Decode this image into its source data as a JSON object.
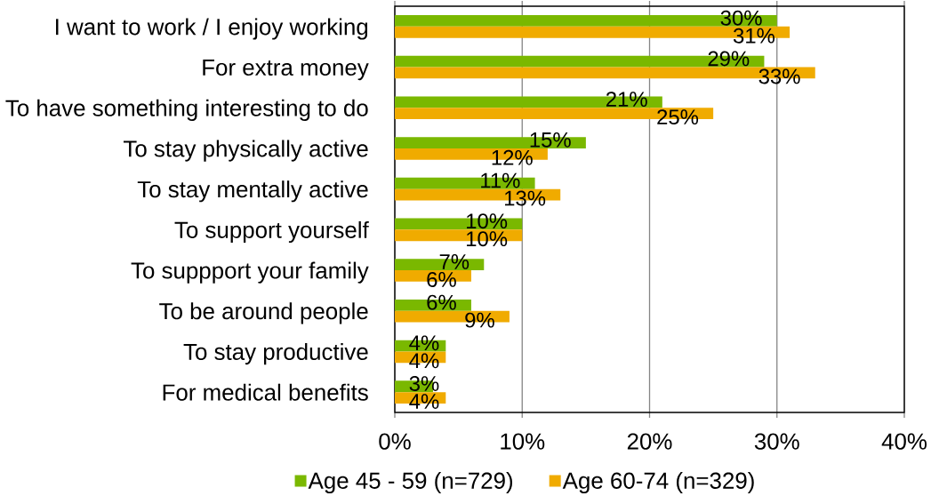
{
  "chart_data": {
    "type": "bar",
    "orientation": "horizontal",
    "categories": [
      "I want to work / I enjoy working",
      "For extra money",
      "To have something interesting to do",
      "To stay physically active",
      "To stay mentally active",
      "To support yourself",
      "To suppport your family",
      "To be around people",
      "To stay productive",
      "For medical benefits"
    ],
    "series": [
      {
        "name": "Age 45 - 59 (n=729)",
        "color": "#7ab800",
        "values": [
          30,
          29,
          21,
          15,
          11,
          10,
          7,
          6,
          4,
          3
        ],
        "value_labels": [
          "30%",
          "29%",
          "21%",
          "15%",
          "11%",
          "10%",
          "7%",
          "6%",
          "4%",
          "3%"
        ]
      },
      {
        "name": "Age 60-74 (n=329)",
        "color": "#f0ab00",
        "values": [
          31,
          33,
          25,
          12,
          13,
          10,
          6,
          9,
          4,
          4
        ],
        "value_labels": [
          "31%",
          "33%",
          "25%",
          "12%",
          "13%",
          "10%",
          "6%",
          "9%",
          "4%",
          "4%"
        ]
      }
    ],
    "xlim": [
      0,
      40
    ],
    "xticks": [
      {
        "value": 0,
        "label": "0%"
      },
      {
        "value": 10,
        "label": "10%"
      },
      {
        "value": 20,
        "label": "20%"
      },
      {
        "value": 30,
        "label": "30%"
      },
      {
        "value": 40,
        "label": "40%"
      }
    ],
    "grid": "x",
    "legend": "bottom"
  }
}
